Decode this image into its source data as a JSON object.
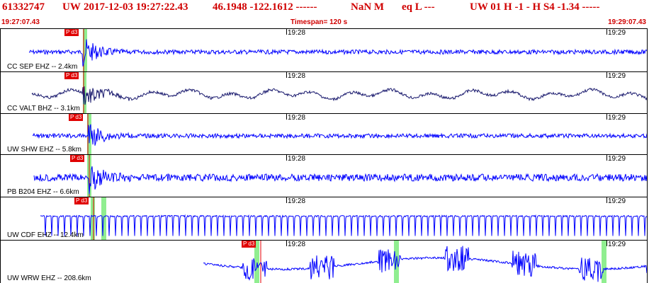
{
  "header": {
    "event_id": "61332747",
    "network": "UW",
    "datetime": "2017-12-03 19:27:22.43",
    "coords": "46.1948 -122.1612 ------",
    "magnitude": "NaN M",
    "event_type": "eq  L ---",
    "status": "UW 01  H  -1  -  H S4  -1.34 -----"
  },
  "time_bar": {
    "start": "19:27:07.43",
    "timespan": "Timespan= 120 s",
    "end": "19:29:07.43"
  },
  "tick_labels": [
    "19:28",
    "19:29"
  ],
  "pick_label": "P d3",
  "colors": {
    "header_red": "#d00000",
    "trace_blue": "#0000ff",
    "trace_navy": "#1a1a6e",
    "pick_red": "#e00000",
    "highlight_green": "#90ee90"
  },
  "traces": [
    {
      "label": "CC SEP EHZ -- 2.4km",
      "color": "blue",
      "style": "noise"
    },
    {
      "label": "CC VALT BHZ -- 3.1km",
      "color": "navy",
      "style": "wave"
    },
    {
      "label": "UW SHW EHZ -- 5.8km",
      "color": "blue",
      "style": "noise"
    },
    {
      "label": "PB B204 EHZ -- 6.6km",
      "color": "blue",
      "style": "noise"
    },
    {
      "label": "UW CDF EHZ -- 12.4km",
      "color": "blue",
      "style": "spikes"
    },
    {
      "label": "UW WRW EHZ -- 208.6km",
      "color": "blue",
      "style": "bursts"
    }
  ]
}
